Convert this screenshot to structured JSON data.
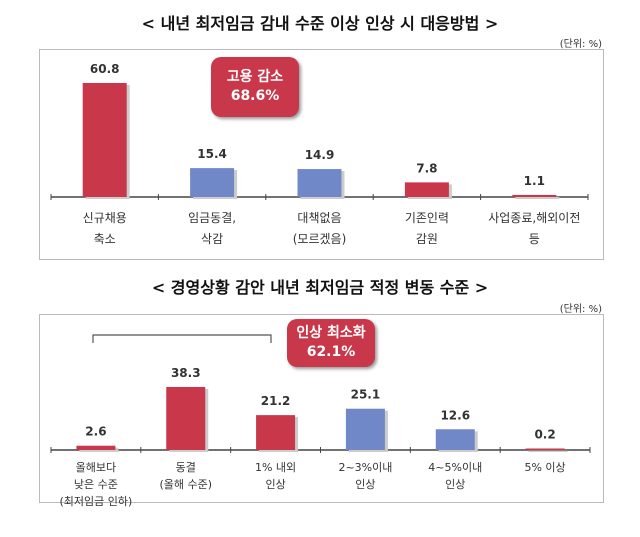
{
  "colors": {
    "red": "#c8374a",
    "blue": "#7088c8"
  },
  "chart_data": [
    {
      "type": "bar",
      "title": "< 내년 최저임금 감내 수준 이상 인상 시 대응방법 >",
      "unit": "(단위: %)",
      "categories": [
        [
          "신규채용",
          "축소"
        ],
        [
          "임금동결,",
          "삭감"
        ],
        [
          "대책없음",
          "(모르겠음)"
        ],
        [
          "기존인력",
          "감원"
        ],
        [
          "사업종료,해외이전",
          "등"
        ]
      ],
      "values": [
        60.8,
        15.4,
        14.9,
        7.8,
        1.1
      ],
      "value_labels": [
        "60.8",
        "15.4",
        "14.9",
        "7.8",
        "1.1"
      ],
      "bar_colors": [
        "red",
        "blue",
        "blue",
        "red",
        "red"
      ],
      "ylim": [
        0,
        65
      ],
      "annotation": {
        "line1": "고용 감소",
        "line2": "68.6%"
      }
    },
    {
      "type": "bar",
      "title": "< 경영상황 감안 내년 최저임금 적정 변동 수준 >",
      "unit": "(단위: %)",
      "categories": [
        [
          "올해보다",
          "낮은 수준",
          "(최저임금 인하)"
        ],
        [
          "동결",
          "(올해 수준)"
        ],
        [
          "1% 내외",
          "인상"
        ],
        [
          "2~3%이내",
          "인상"
        ],
        [
          "4~5%이내",
          "인상"
        ],
        [
          "5% 이상"
        ]
      ],
      "values": [
        2.6,
        38.3,
        21.2,
        25.1,
        12.6,
        0.2
      ],
      "value_labels": [
        "2.6",
        "38.3",
        "21.2",
        "25.1",
        "12.6",
        "0.2"
      ],
      "bar_colors": [
        "red",
        "red",
        "red",
        "blue",
        "blue",
        "red"
      ],
      "ylim": [
        0,
        45
      ],
      "annotation": {
        "line1": "인상 최소화",
        "line2": "62.1%"
      }
    }
  ]
}
